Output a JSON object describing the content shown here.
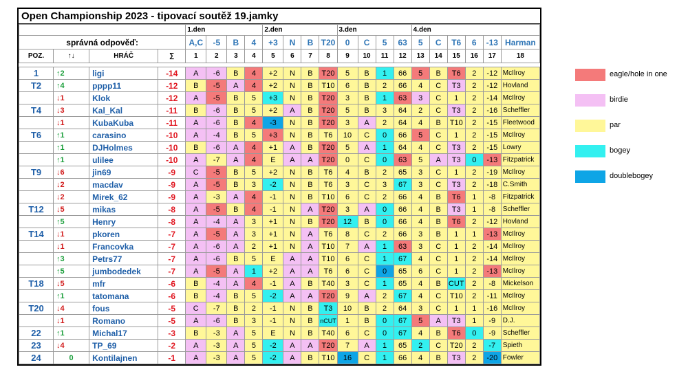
{
  "title": "Open Championship 2023 - tipovací soutěž 19.jamky",
  "correct_label": "správná odpověď:",
  "days": [
    "1.den",
    "2.den",
    "3.den",
    "4.den"
  ],
  "answers": [
    "A,C",
    "-5",
    "B",
    "4",
    "+3",
    "N",
    "B",
    "T20",
    "0",
    "C",
    "5",
    "63",
    "5",
    "C",
    "T6",
    "6",
    "-13",
    "Harman"
  ],
  "headers": {
    "pos": "POZ.",
    "move": "↑↓",
    "player": "HRÁČ",
    "sum": "∑"
  },
  "hole_numbers": [
    "1",
    "2",
    "3",
    "4",
    "5",
    "6",
    "7",
    "8",
    "9",
    "10",
    "11",
    "12",
    "13",
    "14",
    "15",
    "16",
    "17",
    "18"
  ],
  "rows": [
    {
      "pos": "1",
      "move": "↑2",
      "dir": "up",
      "name": "ligi",
      "sum": "-14",
      "picks": [
        "A",
        "-6",
        "B",
        "4",
        "+2",
        "N",
        "B",
        "T20",
        "5",
        "B",
        "1",
        "66",
        "5",
        "B",
        "T6",
        "2",
        "-12",
        "McIlroy"
      ],
      "cls": [
        "bi",
        "bi",
        "pa",
        "ea",
        "pa",
        "pa",
        "pa",
        "ea",
        "pa",
        "pa",
        "bo",
        "pa",
        "ea",
        "pa",
        "ea",
        "pa",
        "pa",
        "pa"
      ]
    },
    {
      "pos": "T2",
      "move": "↑4",
      "dir": "up",
      "name": "pppp11",
      "sum": "-12",
      "picks": [
        "B",
        "-5",
        "A",
        "4",
        "+2",
        "N",
        "B",
        "T10",
        "6",
        "B",
        "2",
        "66",
        "4",
        "C",
        "T3",
        "2",
        "-12",
        "Hovland"
      ],
      "cls": [
        "pa",
        "ea",
        "bi",
        "ea",
        "pa",
        "pa",
        "pa",
        "pa",
        "pa",
        "pa",
        "pa",
        "pa",
        "pa",
        "pa",
        "bi",
        "pa",
        "pa",
        "pa"
      ]
    },
    {
      "pos": "",
      "move": "↓1",
      "dir": "dn",
      "name": "Klok",
      "sum": "-12",
      "picks": [
        "A",
        "-5",
        "B",
        "5",
        "+3",
        "N",
        "B",
        "T20",
        "3",
        "B",
        "1",
        "63",
        "3",
        "C",
        "1",
        "2",
        "-14",
        "McIlroy"
      ],
      "cls": [
        "bi",
        "ea",
        "pa",
        "pa",
        "bo",
        "pa",
        "pa",
        "ea",
        "pa",
        "pa",
        "bo",
        "ea",
        "bi",
        "pa",
        "pa",
        "pa",
        "pa",
        "pa"
      ]
    },
    {
      "pos": "T4",
      "move": "↓3",
      "dir": "dn",
      "name": "Kal_Kal",
      "sum": "-11",
      "picks": [
        "B",
        "-6",
        "B",
        "5",
        "+2",
        "A",
        "B",
        "T20",
        "5",
        "B",
        "3",
        "64",
        "2",
        "C",
        "T3",
        "2",
        "-16",
        "Scheffler"
      ],
      "cls": [
        "pa",
        "bi",
        "pa",
        "pa",
        "pa",
        "bi",
        "pa",
        "ea",
        "pa",
        "pa",
        "pa",
        "pa",
        "pa",
        "pa",
        "bi",
        "pa",
        "pa",
        "pa"
      ]
    },
    {
      "pos": "",
      "move": "↓1",
      "dir": "dn",
      "name": "KubaKuba",
      "sum": "-11",
      "picks": [
        "A",
        "-6",
        "B",
        "4",
        "-3",
        "N",
        "B",
        "T20",
        "3",
        "A",
        "2",
        "64",
        "4",
        "B",
        "T10",
        "2",
        "-15",
        "Fleetwood"
      ],
      "cls": [
        "bi",
        "bi",
        "pa",
        "ea",
        "db",
        "pa",
        "pa",
        "ea",
        "pa",
        "bi",
        "pa",
        "pa",
        "pa",
        "pa",
        "pa",
        "pa",
        "pa",
        "pa"
      ]
    },
    {
      "pos": "T6",
      "move": "↑1",
      "dir": "up",
      "name": "carasino",
      "sum": "-10",
      "picks": [
        "A",
        "-4",
        "B",
        "5",
        "+3",
        "N",
        "B",
        "T6",
        "10",
        "C",
        "0",
        "66",
        "5",
        "C",
        "1",
        "2",
        "-15",
        "McIlroy"
      ],
      "cls": [
        "bi",
        "bi",
        "pa",
        "pa",
        "ea",
        "pa",
        "pa",
        "pa",
        "pa",
        "pa",
        "bo",
        "pa",
        "ea",
        "pa",
        "pa",
        "pa",
        "pa",
        "pa"
      ]
    },
    {
      "pos": "",
      "move": "↑1",
      "dir": "up",
      "name": "DJHolmes",
      "sum": "-10",
      "picks": [
        "B",
        "-6",
        "A",
        "4",
        "+1",
        "A",
        "B",
        "T20",
        "5",
        "A",
        "1",
        "64",
        "4",
        "C",
        "T3",
        "2",
        "-15",
        "Lowry"
      ],
      "cls": [
        "pa",
        "bi",
        "bi",
        "ea",
        "pa",
        "bi",
        "pa",
        "ea",
        "pa",
        "bi",
        "bo",
        "pa",
        "pa",
        "pa",
        "bi",
        "pa",
        "pa",
        "pa"
      ]
    },
    {
      "pos": "",
      "move": "↑1",
      "dir": "up",
      "name": "ulilee",
      "sum": "-10",
      "picks": [
        "A",
        "-7",
        "A",
        "4",
        "E",
        "A",
        "A",
        "T20",
        "0",
        "C",
        "0",
        "63",
        "5",
        "A",
        "T3",
        "0",
        "-13",
        "Fitzpatrick"
      ],
      "cls": [
        "bi",
        "pa",
        "bi",
        "ea",
        "pa",
        "bi",
        "bi",
        "ea",
        "pa",
        "pa",
        "bo",
        "ea",
        "pa",
        "bi",
        "bi",
        "bo",
        "ea",
        "pa"
      ]
    },
    {
      "pos": "T9",
      "move": "↓6",
      "dir": "dn",
      "name": "jin69",
      "sum": "-9",
      "picks": [
        "C",
        "-5",
        "B",
        "5",
        "+2",
        "N",
        "B",
        "T6",
        "4",
        "B",
        "2",
        "65",
        "3",
        "C",
        "1",
        "2",
        "-19",
        "McIlroy"
      ],
      "cls": [
        "bi",
        "ea",
        "pa",
        "pa",
        "pa",
        "pa",
        "pa",
        "pa",
        "pa",
        "pa",
        "pa",
        "pa",
        "pa",
        "pa",
        "pa",
        "pa",
        "pa",
        "pa"
      ]
    },
    {
      "pos": "",
      "move": "↓2",
      "dir": "dn",
      "name": "macdav",
      "sum": "-9",
      "picks": [
        "A",
        "-5",
        "B",
        "3",
        "-2",
        "N",
        "B",
        "T6",
        "3",
        "C",
        "3",
        "67",
        "3",
        "C",
        "T3",
        "2",
        "-18",
        "C.Smith"
      ],
      "cls": [
        "bi",
        "ea",
        "pa",
        "pa",
        "bo",
        "pa",
        "pa",
        "pa",
        "pa",
        "pa",
        "pa",
        "bo",
        "pa",
        "pa",
        "bi",
        "pa",
        "pa",
        "pa"
      ]
    },
    {
      "pos": "",
      "move": "↓2",
      "dir": "dn",
      "name": "Mirek_62",
      "sum": "-9",
      "picks": [
        "A",
        "-3",
        "A",
        "4",
        "-1",
        "N",
        "B",
        "T10",
        "6",
        "C",
        "2",
        "66",
        "4",
        "B",
        "T6",
        "1",
        "-8",
        "Fitzpatrick"
      ],
      "cls": [
        "bi",
        "pa",
        "bi",
        "ea",
        "pa",
        "pa",
        "pa",
        "pa",
        "pa",
        "pa",
        "pa",
        "pa",
        "pa",
        "pa",
        "ea",
        "pa",
        "pa",
        "pa"
      ]
    },
    {
      "pos": "T12",
      "move": "↓5",
      "dir": "dn",
      "name": "mikas",
      "sum": "-8",
      "picks": [
        "A",
        "-5",
        "B",
        "4",
        "-1",
        "N",
        "A",
        "T20",
        "3",
        "A",
        "0",
        "66",
        "4",
        "B",
        "T3",
        "1",
        "-8",
        "Scheffler"
      ],
      "cls": [
        "bi",
        "ea",
        "pa",
        "ea",
        "pa",
        "pa",
        "bi",
        "ea",
        "pa",
        "bi",
        "bo",
        "pa",
        "pa",
        "pa",
        "bi",
        "pa",
        "pa",
        "pa"
      ]
    },
    {
      "pos": "",
      "move": "↑5",
      "dir": "up",
      "name": "Henry",
      "sum": "-8",
      "picks": [
        "A",
        "-4",
        "A",
        "3",
        "+1",
        "N",
        "B",
        "T20",
        "12",
        "B",
        "0",
        "66",
        "4",
        "B",
        "T6",
        "2",
        "-12",
        "Hovland"
      ],
      "cls": [
        "bi",
        "bi",
        "bi",
        "pa",
        "pa",
        "pa",
        "pa",
        "ea",
        "bo",
        "pa",
        "bo",
        "pa",
        "pa",
        "pa",
        "ea",
        "pa",
        "pa",
        "pa"
      ]
    },
    {
      "pos": "T14",
      "move": "↓1",
      "dir": "dn",
      "name": "pkoren",
      "sum": "-7",
      "picks": [
        "A",
        "-5",
        "A",
        "3",
        "+1",
        "N",
        "A",
        "T6",
        "8",
        "C",
        "2",
        "66",
        "3",
        "B",
        "1",
        "1",
        "-13",
        "McIlroy"
      ],
      "cls": [
        "bi",
        "ea",
        "bi",
        "pa",
        "pa",
        "pa",
        "bi",
        "pa",
        "pa",
        "pa",
        "pa",
        "pa",
        "pa",
        "pa",
        "pa",
        "pa",
        "ea",
        "pa"
      ]
    },
    {
      "pos": "",
      "move": "↓1",
      "dir": "dn",
      "name": "Francovka",
      "sum": "-7",
      "picks": [
        "A",
        "-6",
        "A",
        "2",
        "+1",
        "N",
        "A",
        "T10",
        "7",
        "A",
        "1",
        "63",
        "3",
        "C",
        "1",
        "2",
        "-14",
        "McIlroy"
      ],
      "cls": [
        "bi",
        "bi",
        "bi",
        "pa",
        "pa",
        "pa",
        "bi",
        "pa",
        "pa",
        "bi",
        "bo",
        "ea",
        "pa",
        "pa",
        "pa",
        "pa",
        "pa",
        "pa"
      ]
    },
    {
      "pos": "",
      "move": "↑3",
      "dir": "up",
      "name": "Petrs77",
      "sum": "-7",
      "picks": [
        "A",
        "-6",
        "B",
        "5",
        "E",
        "A",
        "A",
        "T10",
        "6",
        "C",
        "1",
        "67",
        "4",
        "C",
        "1",
        "2",
        "-14",
        "McIlroy"
      ],
      "cls": [
        "bi",
        "bi",
        "pa",
        "pa",
        "pa",
        "bi",
        "bi",
        "pa",
        "pa",
        "pa",
        "bo",
        "bo",
        "pa",
        "pa",
        "pa",
        "pa",
        "pa",
        "pa"
      ]
    },
    {
      "pos": "",
      "move": "↑5",
      "dir": "up",
      "name": "jumbodedek",
      "sum": "-7",
      "picks": [
        "A",
        "-5",
        "A",
        "1",
        "+2",
        "A",
        "A",
        "T6",
        "6",
        "C",
        "0",
        "65",
        "6",
        "C",
        "1",
        "2",
        "-13",
        "McIlroy"
      ],
      "cls": [
        "bi",
        "ea",
        "bi",
        "bo",
        "pa",
        "bi",
        "bi",
        "pa",
        "pa",
        "pa",
        "db",
        "pa",
        "pa",
        "pa",
        "pa",
        "pa",
        "ea",
        "pa"
      ]
    },
    {
      "pos": "T18",
      "move": "↓5",
      "dir": "dn",
      "name": "mfr",
      "sum": "-6",
      "picks": [
        "B",
        "-4",
        "A",
        "4",
        "-1",
        "A",
        "B",
        "T40",
        "3",
        "C",
        "1",
        "65",
        "4",
        "B",
        "CUT",
        "2",
        "-8",
        "Mickelson"
      ],
      "cls": [
        "pa",
        "bi",
        "bi",
        "ea",
        "pa",
        "bi",
        "pa",
        "pa",
        "pa",
        "pa",
        "bo",
        "pa",
        "pa",
        "pa",
        "bo",
        "pa",
        "pa",
        "pa"
      ]
    },
    {
      "pos": "",
      "move": "↑1",
      "dir": "up",
      "name": "tatomana",
      "sum": "-6",
      "picks": [
        "B",
        "-4",
        "B",
        "5",
        "-2",
        "A",
        "A",
        "T20",
        "9",
        "A",
        "2",
        "67",
        "4",
        "C",
        "T10",
        "2",
        "-11",
        "McIlroy"
      ],
      "cls": [
        "pa",
        "bi",
        "pa",
        "pa",
        "bo",
        "bi",
        "bi",
        "ea",
        "pa",
        "bi",
        "pa",
        "bo",
        "pa",
        "pa",
        "pa",
        "pa",
        "pa",
        "pa"
      ]
    },
    {
      "pos": "T20",
      "move": "↓4",
      "dir": "dn",
      "name": "fous",
      "sum": "-5",
      "picks": [
        "C",
        "-7",
        "B",
        "2",
        "-1",
        "N",
        "B",
        "T3",
        "10",
        "B",
        "2",
        "64",
        "3",
        "C",
        "1",
        "1",
        "-16",
        "McIlroy"
      ],
      "cls": [
        "bi",
        "pa",
        "pa",
        "pa",
        "pa",
        "pa",
        "pa",
        "bo",
        "pa",
        "pa",
        "pa",
        "pa",
        "pa",
        "pa",
        "pa",
        "pa",
        "pa",
        "pa"
      ]
    },
    {
      "pos": "",
      "move": "↓1",
      "dir": "dn",
      "name": "Romano",
      "sum": "-5",
      "picks": [
        "A",
        "-6",
        "B",
        "3",
        "-1",
        "N",
        "B",
        "nCUT",
        "1",
        "B",
        "0",
        "67",
        "5",
        "A",
        "T3",
        "1",
        "-9",
        "D.J."
      ],
      "cls": [
        "bi",
        "bi",
        "pa",
        "pa",
        "pa",
        "pa",
        "pa",
        "bo",
        "pa",
        "pa",
        "bo",
        "bo",
        "ea",
        "bi",
        "bi",
        "pa",
        "pa",
        "pa"
      ]
    },
    {
      "pos": "22",
      "move": "↑1",
      "dir": "up",
      "name": "Michal17",
      "sum": "-3",
      "picks": [
        "B",
        "-3",
        "A",
        "5",
        "E",
        "N",
        "B",
        "T40",
        "6",
        "C",
        "0",
        "67",
        "4",
        "B",
        "T6",
        "0",
        "-9",
        "Scheffler"
      ],
      "cls": [
        "pa",
        "pa",
        "bi",
        "pa",
        "pa",
        "pa",
        "pa",
        "pa",
        "pa",
        "pa",
        "bo",
        "bo",
        "pa",
        "pa",
        "ea",
        "bo",
        "pa",
        "pa"
      ]
    },
    {
      "pos": "23",
      "move": "↓4",
      "dir": "dn",
      "name": "TP_69",
      "sum": "-2",
      "picks": [
        "A",
        "-3",
        "A",
        "5",
        "-2",
        "A",
        "A",
        "T20",
        "7",
        "A",
        "1",
        "65",
        "2",
        "C",
        "T20",
        "2",
        "-7",
        "Spieth"
      ],
      "cls": [
        "bi",
        "pa",
        "bi",
        "pa",
        "bo",
        "bi",
        "bi",
        "ea",
        "pa",
        "bi",
        "bo",
        "pa",
        "bo",
        "pa",
        "pa",
        "pa",
        "bo",
        "pa"
      ]
    },
    {
      "pos": "24",
      "move": "0",
      "dir": "eq",
      "name": "Kontilajnen",
      "sum": "-1",
      "picks": [
        "A",
        "-3",
        "A",
        "5",
        "-2",
        "A",
        "B",
        "T10",
        "16",
        "C",
        "1",
        "66",
        "4",
        "B",
        "T3",
        "2",
        "-20",
        "Fowler"
      ],
      "cls": [
        "bi",
        "pa",
        "bi",
        "pa",
        "bo",
        "bi",
        "pa",
        "pa",
        "db",
        "pa",
        "bo",
        "pa",
        "pa",
        "pa",
        "bi",
        "pa",
        "db",
        "pa"
      ]
    }
  ],
  "legend": [
    {
      "label": "eagle/hole in one",
      "color": "#f47a7a"
    },
    {
      "label": "birdie",
      "color": "#f4c0f4"
    },
    {
      "label": "par",
      "color": "#fff799"
    },
    {
      "label": "bogey",
      "color": "#33f0f0"
    },
    {
      "label": "doublebogey",
      "color": "#0ea5e6"
    }
  ]
}
